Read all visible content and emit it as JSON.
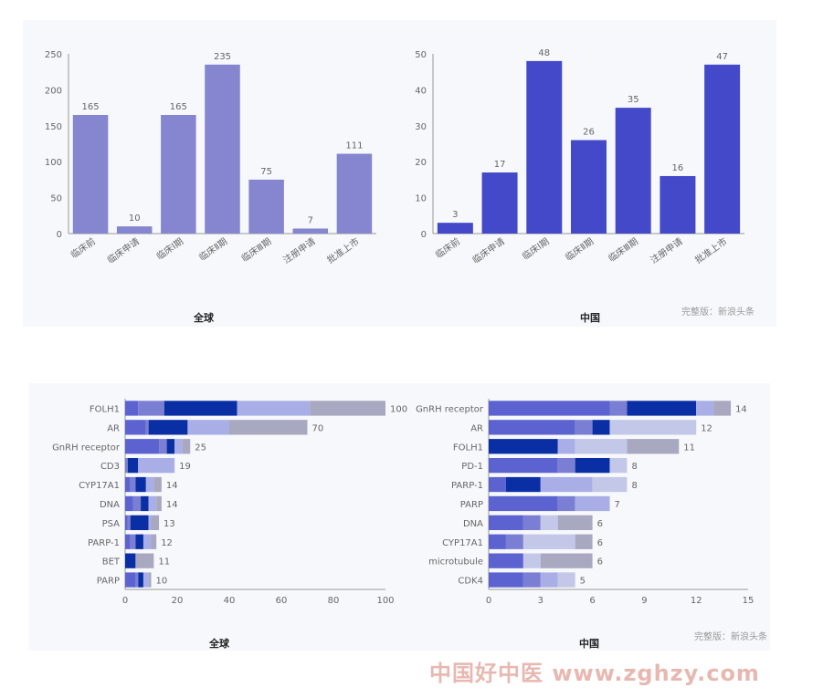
{
  "top_watermark": "完整版：新浪头条",
  "bottom_watermark": "完整版：新浪头条",
  "site_watermark": "中国好中医 www.zghzy.com",
  "colors": {
    "global_bar": "#8585d0",
    "china_bar": "#4349c8",
    "palette": [
      "#5c63d0",
      "#7a7fd3",
      "#0a2fa5",
      "#a9aee6",
      "#c4c8e8",
      "#a8a8c0"
    ]
  },
  "chart_data": [
    {
      "id": "top-global",
      "type": "bar",
      "title": "全球",
      "categories": [
        "临床前",
        "临床申请",
        "临床Ⅰ期",
        "临床Ⅱ期",
        "临床Ⅲ期",
        "注册申请",
        "批准上市"
      ],
      "values": [
        165,
        10,
        165,
        235,
        75,
        7,
        111
      ],
      "ylim": [
        0,
        250
      ],
      "yticks": [
        0,
        50,
        100,
        150,
        200,
        250
      ],
      "color": "#8585d0"
    },
    {
      "id": "top-china",
      "type": "bar",
      "title": "中国",
      "categories": [
        "临床前",
        "临床申请",
        "临床Ⅰ期",
        "临床Ⅱ期",
        "临床Ⅲ期",
        "注册申请",
        "批准上市"
      ],
      "values": [
        3,
        17,
        48,
        26,
        35,
        16,
        47
      ],
      "ylim": [
        0,
        50
      ],
      "yticks": [
        0,
        10,
        20,
        30,
        40,
        50
      ],
      "color": "#4349c8"
    },
    {
      "id": "bottom-global",
      "type": "bar",
      "orientation": "horizontal",
      "stacked": true,
      "title": "全球",
      "categories": [
        "FOLH1",
        "AR",
        "GnRH receptor",
        "CD3",
        "CYP17A1",
        "DNA",
        "PSA",
        "PARP-1",
        "BET",
        "PARP"
      ],
      "totals": [
        100,
        70,
        25,
        19,
        14,
        14,
        13,
        12,
        11,
        10
      ],
      "segments": [
        [
          5,
          10,
          28,
          28,
          0,
          29
        ],
        [
          8,
          1,
          15,
          16,
          0,
          30
        ],
        [
          13,
          3,
          3,
          3,
          0,
          3
        ],
        [
          0,
          1,
          4,
          14,
          0,
          0
        ],
        [
          2,
          2,
          4,
          3,
          0,
          3
        ],
        [
          3,
          3,
          3,
          3,
          0,
          2
        ],
        [
          1,
          1,
          7,
          1,
          0,
          3
        ],
        [
          2,
          2,
          3,
          3,
          0,
          2
        ],
        [
          0,
          0,
          4,
          0,
          0,
          7
        ],
        [
          4,
          1,
          2,
          2,
          0,
          1
        ]
      ],
      "xlim": [
        0,
        100
      ],
      "xticks": [
        0,
        20,
        40,
        60,
        80,
        100
      ]
    },
    {
      "id": "bottom-china",
      "type": "bar",
      "orientation": "horizontal",
      "stacked": true,
      "title": "中国",
      "categories": [
        "GnRH receptor",
        "AR",
        "FOLH1",
        "PD-1",
        "PARP-1",
        "PARP",
        "DNA",
        "CYP17A1",
        "microtubule",
        "CDK4"
      ],
      "totals": [
        14,
        12,
        11,
        8,
        8,
        7,
        6,
        6,
        6,
        5
      ],
      "segments": [
        [
          7,
          1,
          4,
          1,
          0,
          1
        ],
        [
          5,
          1,
          1,
          0,
          5,
          0
        ],
        [
          0,
          0,
          4,
          1,
          3,
          3
        ],
        [
          4,
          1,
          2,
          0,
          1,
          0
        ],
        [
          1,
          0,
          2,
          3,
          2,
          0
        ],
        [
          4,
          1,
          0,
          2,
          0,
          0
        ],
        [
          2,
          1,
          0,
          0,
          1,
          2
        ],
        [
          1,
          1,
          0,
          0,
          3,
          1
        ],
        [
          2,
          0,
          0,
          0,
          1,
          3
        ],
        [
          2,
          1,
          0,
          1,
          1,
          0
        ]
      ],
      "xlim": [
        0,
        15
      ],
      "xticks": [
        0,
        3,
        6,
        9,
        12,
        15
      ]
    }
  ]
}
